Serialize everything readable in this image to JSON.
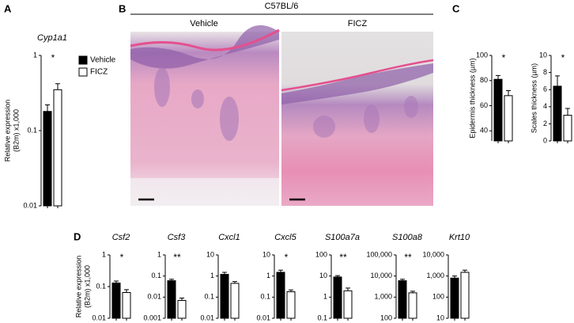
{
  "panel_labels": [
    "A",
    "B",
    "C",
    "D"
  ],
  "histology": {
    "title": "C57BL/6",
    "columns": [
      "Vehicle",
      "FICZ"
    ]
  },
  "chart_data": [
    {
      "type": "bar",
      "title": "Cyp1a1",
      "ylabel": [
        "Relative expression",
        "(B2m) x1,000"
      ],
      "log_scale": true,
      "ylim": [
        0.01,
        1
      ],
      "yticks": [
        0.01,
        0.1,
        1
      ],
      "categories": [
        null
      ],
      "annotation": "*",
      "legend": "right",
      "series": [
        {
          "name": "Vehicle",
          "color": "#000000",
          "values": [
            0.18
          ],
          "errors": [
            0.04
          ]
        },
        {
          "name": "FICZ",
          "color": "#ffffff",
          "values": [
            0.35
          ],
          "errors": [
            0.07
          ]
        }
      ]
    },
    {
      "type": "bar",
      "ylabel": "Epidermis thickness (µm)",
      "log_scale": false,
      "ylim": [
        32,
        100
      ],
      "yticks": [
        40,
        60,
        80,
        100
      ],
      "categories": [
        null
      ],
      "annotation": "*",
      "series": [
        {
          "color": "#000000",
          "values": [
            81
          ],
          "errors": [
            3
          ]
        },
        {
          "color": "#ffffff",
          "values": [
            68
          ],
          "errors": [
            4
          ]
        }
      ]
    },
    {
      "type": "bar",
      "ylabel": "Scales thickness (µm)",
      "log_scale": false,
      "ylim": [
        0,
        10
      ],
      "yticks": [
        0,
        2,
        4,
        6,
        8,
        10
      ],
      "categories": [
        null
      ],
      "annotation": "*",
      "series": [
        {
          "color": "#000000",
          "values": [
            6.4
          ],
          "errors": [
            1.2
          ]
        },
        {
          "color": "#ffffff",
          "values": [
            3.0
          ],
          "errors": [
            0.8
          ]
        }
      ]
    },
    {
      "type": "bar",
      "title": "Csf2",
      "ylabel": [
        "Relative expression",
        "(B2m) x1,000"
      ],
      "log_scale": true,
      "ylim": [
        0.01,
        1
      ],
      "yticks": [
        0.01,
        0.1,
        1
      ],
      "categories": [
        null
      ],
      "annotation": "*",
      "series": [
        {
          "color": "#000000",
          "values": [
            0.13
          ],
          "errors": [
            0.02
          ]
        },
        {
          "color": "#ffffff",
          "values": [
            0.065
          ],
          "errors": [
            0.015
          ]
        }
      ]
    },
    {
      "type": "bar",
      "title": "Csf3",
      "log_scale": true,
      "ylim": [
        0.001,
        1
      ],
      "yticks": [
        0.001,
        0.01,
        0.1,
        1
      ],
      "categories": [
        null
      ],
      "annotation": "**",
      "series": [
        {
          "color": "#000000",
          "values": [
            0.06
          ],
          "errors": [
            0.01
          ]
        },
        {
          "color": "#ffffff",
          "values": [
            0.007
          ],
          "errors": [
            0.002
          ]
        }
      ]
    },
    {
      "type": "bar",
      "title": "Cxcl1",
      "log_scale": true,
      "ylim": [
        0.01,
        10
      ],
      "yticks": [
        0.01,
        0.1,
        1,
        10
      ],
      "categories": [
        null
      ],
      "series": [
        {
          "color": "#000000",
          "values": [
            1.2
          ],
          "errors": [
            0.3
          ]
        },
        {
          "color": "#ffffff",
          "values": [
            0.45
          ],
          "errors": [
            0.1
          ]
        }
      ]
    },
    {
      "type": "bar",
      "title": "Cxcl5",
      "log_scale": true,
      "ylim": [
        0.01,
        10
      ],
      "yticks": [
        0.01,
        0.1,
        1,
        10
      ],
      "categories": [
        null
      ],
      "annotation": "*",
      "series": [
        {
          "color": "#000000",
          "values": [
            1.5
          ],
          "errors": [
            0.4
          ]
        },
        {
          "color": "#ffffff",
          "values": [
            0.18
          ],
          "errors": [
            0.04
          ]
        }
      ]
    },
    {
      "type": "bar",
      "title": "S100a7a",
      "log_scale": true,
      "ylim": [
        0.1,
        100
      ],
      "yticks": [
        0.1,
        1,
        10,
        100
      ],
      "categories": [
        null
      ],
      "annotation": "**",
      "series": [
        {
          "color": "#000000",
          "values": [
            9
          ],
          "errors": [
            1.5
          ]
        },
        {
          "color": "#ffffff",
          "values": [
            2
          ],
          "errors": [
            0.7
          ]
        }
      ]
    },
    {
      "type": "bar",
      "title": "S100a8",
      "log_scale": true,
      "ylim": [
        100,
        100000
      ],
      "yticks": [
        100,
        {
          "value": 1000,
          "label": "1,000"
        },
        {
          "value": 10000,
          "label": "10,000"
        },
        {
          "value": 100000,
          "label": "100,000"
        }
      ],
      "categories": [
        null
      ],
      "annotation": "**",
      "series": [
        {
          "color": "#000000",
          "values": [
            6000
          ],
          "errors": [
            1000
          ]
        },
        {
          "color": "#ffffff",
          "values": [
            1600
          ],
          "errors": [
            300
          ]
        }
      ]
    },
    {
      "type": "bar",
      "title": "Krt10",
      "log_scale": true,
      "ylim": [
        10,
        10000
      ],
      "yticks": [
        10,
        100,
        {
          "value": 1000,
          "label": "1,000"
        },
        {
          "value": 10000,
          "label": "10,000"
        }
      ],
      "categories": [
        null
      ],
      "series": [
        {
          "color": "#000000",
          "values": [
            800
          ],
          "errors": [
            200
          ]
        },
        {
          "color": "#ffffff",
          "values": [
            1500
          ],
          "errors": [
            400
          ]
        }
      ]
    }
  ]
}
